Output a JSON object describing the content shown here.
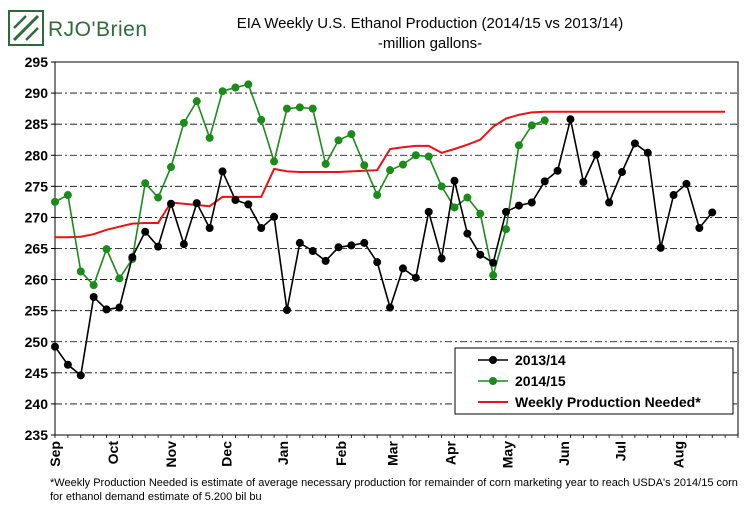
{
  "logo": {
    "brand": "RJO'Brien"
  },
  "header": {
    "title": "EIA Weekly U.S. Ethanol Production (2014/15 vs 2013/14)",
    "subtitle": "-million  gallons-"
  },
  "footnote": "*Weekly Production Needed is estimate of average necessary production for remainder of corn marketing year to reach USDA's  2014/15 corn for ethanol demand estimate of 5.200 bil bu",
  "colors": {
    "s2013": "#000000",
    "s2014": "#1a8c1a",
    "needed": "#ee1111"
  },
  "chart_data": {
    "type": "line",
    "title": "EIA Weekly U.S. Ethanol Production (2014/15 vs 2013/14)",
    "subtitle": "-million  gallons-",
    "ylim": [
      235,
      295
    ],
    "yticks": [
      235,
      240,
      245,
      250,
      255,
      260,
      265,
      270,
      275,
      280,
      285,
      290,
      295
    ],
    "grid": true,
    "legend_position": "bottom-right",
    "x_weeks": 53,
    "month_labels": [
      {
        "label": "Sep",
        "week": 0
      },
      {
        "label": "Oct",
        "week": 4.5
      },
      {
        "label": "Nov",
        "week": 9
      },
      {
        "label": "Dec",
        "week": 13.3
      },
      {
        "label": "Jan",
        "week": 17.7
      },
      {
        "label": "Feb",
        "week": 22.2
      },
      {
        "label": "Mar",
        "week": 26.2
      },
      {
        "label": "Apr",
        "week": 30.7
      },
      {
        "label": "May",
        "week": 35.1
      },
      {
        "label": "Jun",
        "week": 39.5
      },
      {
        "label": "Jul",
        "week": 43.9
      },
      {
        "label": "Aug",
        "week": 48.4
      }
    ],
    "series": [
      {
        "name": "2013/14",
        "color": "#000000",
        "marker": true,
        "values": [
          249.2,
          246.3,
          244.6,
          257.2,
          255.2,
          255.5,
          263.6,
          267.7,
          265.3,
          272.2,
          265.7,
          272.3,
          268.3,
          277.4,
          272.8,
          272.1,
          268.3,
          270.1,
          255.1,
          265.9,
          264.6,
          263.0,
          265.2,
          265.5,
          265.9,
          262.8,
          255.5,
          261.8,
          260.3,
          270.9,
          263.4,
          275.9,
          267.4,
          264.0,
          262.7,
          270.9,
          271.9,
          272.4,
          275.8,
          277.5,
          285.8,
          275.7,
          280.1,
          272.4,
          277.3,
          281.9,
          280.4,
          265.1,
          273.6,
          275.4,
          268.3,
          270.8
        ]
      },
      {
        "name": "2014/15",
        "color": "#1a8c1a",
        "marker": true,
        "values": [
          272.5,
          273.6,
          261.3,
          259.1,
          264.9,
          260.2,
          263.3,
          275.5,
          273.2,
          278.1,
          285.2,
          288.7,
          282.8,
          290.3,
          290.9,
          291.4,
          285.7,
          279.0,
          287.5,
          287.7,
          287.5,
          278.6,
          282.4,
          283.4,
          278.4,
          273.6,
          277.6,
          278.5,
          280.0,
          279.8,
          275.0,
          271.6,
          273.2,
          270.6,
          260.7,
          268.1,
          281.6,
          284.8,
          285.6
        ]
      },
      {
        "name": "Weekly Production Needed*",
        "color": "#ee1111",
        "marker": false,
        "values": [
          266.8,
          266.8,
          266.9,
          267.3,
          268.0,
          268.5,
          269.0,
          269.1,
          269.1,
          272.4,
          272.2,
          272.0,
          271.8,
          273.3,
          273.3,
          273.3,
          273.3,
          277.8,
          277.4,
          277.3,
          277.3,
          277.3,
          277.3,
          277.4,
          277.5,
          277.6,
          281.0,
          281.3,
          281.5,
          281.5,
          280.4,
          281.0,
          281.7,
          282.5,
          284.6,
          285.9,
          286.5,
          286.9,
          287.0,
          287.0,
          287.0,
          287.0,
          287.0,
          287.0,
          287.0,
          287.0,
          287.0,
          287.0,
          287.0,
          287.0,
          287.0,
          287.0,
          287.0
        ]
      }
    ]
  }
}
